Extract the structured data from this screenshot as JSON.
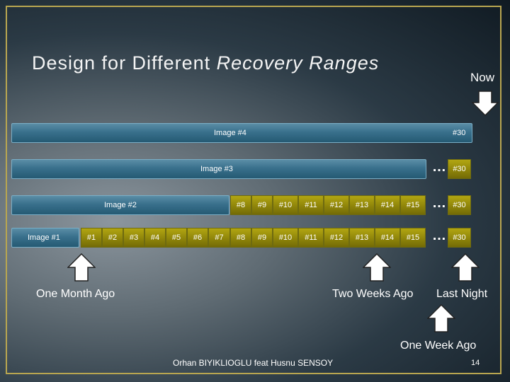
{
  "title": {
    "prefix": "Design for Different ",
    "emphasis": "Recovery Ranges"
  },
  "now_label": "Now",
  "rows": [
    {
      "image": "Image #4",
      "end": "#30"
    },
    {
      "image": "Image #3",
      "end": "#30",
      "ellipsis": "…"
    },
    {
      "image": "Image #2",
      "snapshots": [
        "#8",
        "#9",
        "#10",
        "#11",
        "#12",
        "#13",
        "#14",
        "#15"
      ],
      "ellipsis": "…",
      "end": "#30"
    },
    {
      "image": "Image #1",
      "snapshots": [
        "#1",
        "#2",
        "#3",
        "#4",
        "#5",
        "#6",
        "#7",
        "#8",
        "#9",
        "#10",
        "#11",
        "#12",
        "#13",
        "#14",
        "#15"
      ],
      "ellipsis": "…",
      "end": "#30"
    }
  ],
  "markers": {
    "one_month_ago": "One Month Ago",
    "two_weeks_ago": "Two Weeks Ago",
    "last_night": "Last Night",
    "one_week_ago": "One Week Ago"
  },
  "footer": "Orhan BIYIKLIOGLU feat Husnu SENSOY",
  "page_number": "14",
  "colors": {
    "bar": "#39708c",
    "snapshot": "#8f850a",
    "frame": "#b9a650"
  }
}
